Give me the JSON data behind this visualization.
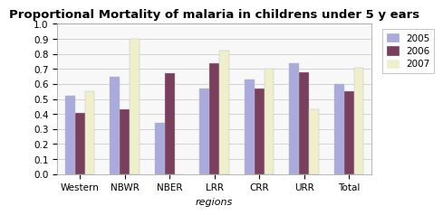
{
  "title": "Proportional Mortality of malaria in childrens under 5 y ears",
  "xlabel": "regions",
  "categories": [
    "Western",
    "NBWR",
    "NBER",
    "LRR",
    "CRR",
    "URR",
    "Total"
  ],
  "series": {
    "2005": [
      0.52,
      0.65,
      0.34,
      0.57,
      0.63,
      0.74,
      0.6
    ],
    "2006": [
      0.41,
      0.43,
      0.67,
      0.74,
      0.57,
      0.68,
      0.55
    ],
    "2007": [
      0.55,
      0.9,
      0.0,
      0.82,
      0.7,
      0.43,
      0.71
    ]
  },
  "colors": {
    "2005": "#aaaadd",
    "2006": "#7b3f5e",
    "2007": "#efefcc"
  },
  "ylim": [
    0.0,
    1.0
  ],
  "yticks": [
    0.0,
    0.1,
    0.2,
    0.3,
    0.4,
    0.5,
    0.6,
    0.7,
    0.8,
    0.9,
    1.0
  ],
  "legend_labels": [
    "2005",
    "2006",
    "2007"
  ],
  "bar_width": 0.22,
  "background_color": "#ffffff",
  "plot_bg_color": "#f8f8f8",
  "grid_color": "#cccccc",
  "title_fontsize": 9.5,
  "axis_label_fontsize": 8,
  "tick_fontsize": 7.5,
  "legend_fontsize": 7.5
}
